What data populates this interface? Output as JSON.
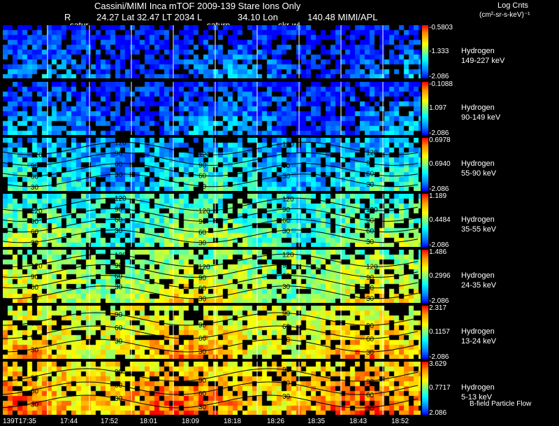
{
  "header": {
    "title": "Cassini/MIMI Inca mTOF  2009-139   Stare   Ions Only",
    "line2_r": "R",
    "line2_lat": "24.27 Lat 32.47 LT 2034 L",
    "line2_lon": "34.10 Lon",
    "line2_right": "140.48  MIMI/APL",
    "cb_title": "Log Cnts",
    "cb_units": "(cm²-sr-s-keV)⁻¹",
    "saturn_labels": [
      "satur",
      "saturn",
      "skr-wl"
    ]
  },
  "footer": {
    "bfield_label": "B-field Particle Flow",
    "x_ticks": [
      "139T17:35",
      "17:44",
      "17:52",
      "18:01",
      "18:09",
      "18:18",
      "18:26",
      "18:35",
      "18:43",
      "18:52"
    ]
  },
  "chart_data": {
    "type": "heatmap",
    "title": "Cassini/MIMI Inca mTOF  2009-139   Stare   Ions Only",
    "xlabel": "",
    "ylabel": "",
    "colorbar_label": "Log Cnts (cm²-sr-s-keV)⁻¹",
    "panels": [
      {
        "species": "Hydrogen",
        "energy": "149-227 keV",
        "cb_max": "-0.5803",
        "cb_mid": "-1.333",
        "cb_min": "-2.086",
        "intensity": 0.12,
        "contours": []
      },
      {
        "species": "Hydrogen",
        "energy": "90-149 keV",
        "cb_max": "-0.1088",
        "cb_mid": "1.097",
        "cb_min": "-2.086",
        "intensity": 0.15,
        "contours": []
      },
      {
        "species": "Hydrogen",
        "energy": "55-90 keV",
        "cb_max": "0.6978",
        "cb_mid": "0.6940",
        "cb_min": "-2.086",
        "intensity": 0.32,
        "contours": [
          "120",
          "90",
          "60",
          "30"
        ]
      },
      {
        "species": "Hydrogen",
        "energy": "35-55 keV",
        "cb_max": "1.189",
        "cb_mid": "0.4484",
        "cb_min": "-2.086",
        "intensity": 0.48,
        "contours": [
          "120",
          "90",
          "60",
          "30"
        ]
      },
      {
        "species": "Hydrogen",
        "energy": "24-35 keV",
        "cb_max": "1.486",
        "cb_mid": "0.2996",
        "cb_min": "-2.086",
        "intensity": 0.6,
        "contours": [
          "120",
          "90",
          "60",
          "30"
        ]
      },
      {
        "species": "Hydrogen",
        "energy": "13-24 keV",
        "cb_max": "2.317",
        "cb_mid": "0.1157",
        "cb_min": "-2.086",
        "intensity": 0.72,
        "contours": [
          "90",
          "60",
          "30"
        ]
      },
      {
        "species": "Hydrogen",
        "energy": "5-13 keV",
        "cb_max": "3.629",
        "cb_mid": "0.7717",
        "cb_min": "2.086",
        "intensity": 0.82,
        "contours": [
          "90",
          "60",
          "30"
        ]
      }
    ]
  }
}
